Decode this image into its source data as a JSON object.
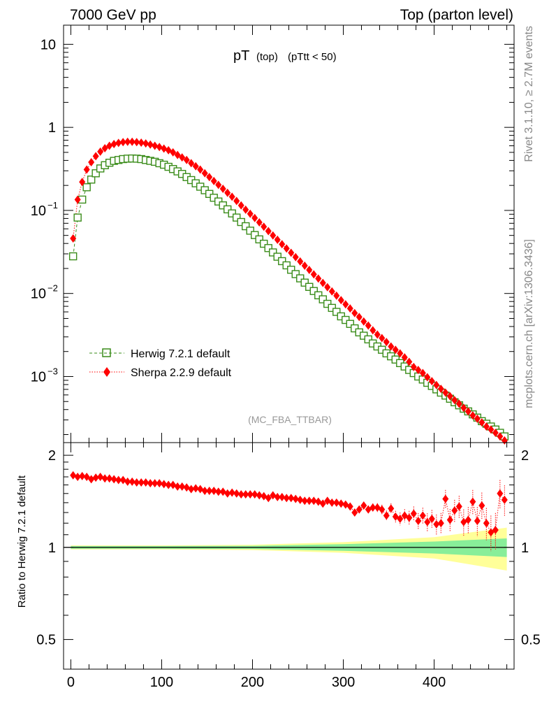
{
  "header": {
    "left": "7000 GeV pp",
    "right": "Top (parton level)"
  },
  "side_text": {
    "rivet": "Rivet 3.1.10, ≥ 2.7M events",
    "url": "mcplots.cern.ch [arXiv:1306.3436]"
  },
  "plot": {
    "title_main": "pT",
    "title_sub": "(top)",
    "title_cut": "(pTtt < 50)",
    "analysis": "(MC_FBA_TTBAR)",
    "ratio_ylabel": "Ratio to Herwig 7.2.1 default"
  },
  "colors": {
    "herwig": "#3a8c1a",
    "sherpa": "#ff0000",
    "band_inner": "#88ee99",
    "band_outer": "#ffff99"
  },
  "chart_data": [
    {
      "type": "scatter",
      "panel": "main",
      "x_scale": "linear",
      "y_scale": "log",
      "xlim": [
        -8,
        488
      ],
      "ylim": [
        0.00016,
        17
      ],
      "y_ticks": [
        {
          "value": 10,
          "label": "10"
        },
        {
          "value": 1,
          "label": "1"
        },
        {
          "value": 0.1,
          "label": "10",
          "exp": "−1"
        },
        {
          "value": 0.01,
          "label": "10",
          "exp": "−2"
        },
        {
          "value": 0.001,
          "label": "10",
          "exp": "−3"
        }
      ],
      "legend": {
        "position": "bottom-left",
        "entries": [
          "Herwig 7.2.1 default",
          "Sherpa 2.2.9 default"
        ]
      },
      "series": [
        {
          "name": "Herwig 7.2.1 default",
          "marker": "open-square",
          "line": "dashed",
          "x": [
            2.5,
            7.5,
            12.5,
            17.5,
            22.5,
            27.5,
            32.5,
            37.5,
            42.5,
            47.5,
            52.5,
            57.5,
            62.5,
            67.5,
            72.5,
            77.5,
            82.5,
            87.5,
            92.5,
            97.5,
            102.5,
            107.5,
            112.5,
            117.5,
            122.5,
            127.5,
            132.5,
            137.5,
            142.5,
            147.5,
            152.5,
            157.5,
            162.5,
            167.5,
            172.5,
            177.5,
            182.5,
            187.5,
            192.5,
            197.5,
            202.5,
            207.5,
            212.5,
            217.5,
            222.5,
            227.5,
            232.5,
            237.5,
            242.5,
            247.5,
            252.5,
            257.5,
            262.5,
            267.5,
            272.5,
            277.5,
            282.5,
            287.5,
            292.5,
            297.5,
            302.5,
            307.5,
            312.5,
            317.5,
            322.5,
            327.5,
            332.5,
            337.5,
            342.5,
            347.5,
            352.5,
            357.5,
            362.5,
            367.5,
            372.5,
            377.5,
            382.5,
            387.5,
            392.5,
            397.5,
            402.5,
            407.5,
            412.5,
            417.5,
            422.5,
            427.5,
            432.5,
            437.5,
            442.5,
            447.5,
            452.5,
            457.5,
            462.5,
            467.5,
            472.5,
            477.5
          ],
          "values": [
            0.028,
            0.082,
            0.135,
            0.19,
            0.235,
            0.28,
            0.32,
            0.35,
            0.375,
            0.395,
            0.405,
            0.415,
            0.42,
            0.422,
            0.42,
            0.415,
            0.405,
            0.395,
            0.385,
            0.37,
            0.355,
            0.335,
            0.315,
            0.295,
            0.275,
            0.252,
            0.232,
            0.212,
            0.193,
            0.175,
            0.158,
            0.142,
            0.128,
            0.115,
            0.103,
            0.092,
            0.082,
            0.0725,
            0.0645,
            0.057,
            0.0505,
            0.0448,
            0.0397,
            0.0352,
            0.0312,
            0.0277,
            0.0245,
            0.0218,
            0.0193,
            0.0171,
            0.0152,
            0.0135,
            0.012,
            0.0107,
            0.0095,
            0.0085,
            0.0075,
            0.0067,
            0.006,
            0.0053,
            0.0048,
            0.0043,
            0.0038,
            0.0034,
            0.0031,
            0.0028,
            0.0025,
            0.0023,
            0.0021,
            0.0019,
            0.00175,
            0.0016,
            0.00145,
            0.00132,
            0.0012,
            0.0011,
            0.001,
            0.00092,
            0.00084,
            0.00077,
            0.0007,
            0.00064,
            0.00059,
            0.00054,
            0.00049,
            0.00045,
            0.00041,
            0.00038,
            0.00035,
            0.00032,
            0.00029,
            0.00027,
            0.00025,
            0.00023,
            0.00021,
            0.00019
          ]
        },
        {
          "name": "Sherpa 2.2.9 default",
          "marker": "filled-diamond",
          "line": "dotted",
          "x": [
            2.5,
            7.5,
            12.5,
            17.5,
            22.5,
            27.5,
            32.5,
            37.5,
            42.5,
            47.5,
            52.5,
            57.5,
            62.5,
            67.5,
            72.5,
            77.5,
            82.5,
            87.5,
            92.5,
            97.5,
            102.5,
            107.5,
            112.5,
            117.5,
            122.5,
            127.5,
            132.5,
            137.5,
            142.5,
            147.5,
            152.5,
            157.5,
            162.5,
            167.5,
            172.5,
            177.5,
            182.5,
            187.5,
            192.5,
            197.5,
            202.5,
            207.5,
            212.5,
            217.5,
            222.5,
            227.5,
            232.5,
            237.5,
            242.5,
            247.5,
            252.5,
            257.5,
            262.5,
            267.5,
            272.5,
            277.5,
            282.5,
            287.5,
            292.5,
            297.5,
            302.5,
            307.5,
            312.5,
            317.5,
            322.5,
            327.5,
            332.5,
            337.5,
            342.5,
            347.5,
            352.5,
            357.5,
            362.5,
            367.5,
            372.5,
            377.5,
            382.5,
            387.5,
            392.5,
            397.5,
            402.5,
            407.5,
            412.5,
            417.5,
            422.5,
            427.5,
            432.5,
            437.5,
            442.5,
            447.5,
            452.5,
            457.5,
            462.5,
            467.5,
            472.5,
            477.5
          ],
          "values": [
            0.046,
            0.135,
            0.22,
            0.31,
            0.38,
            0.45,
            0.51,
            0.56,
            0.6,
            0.63,
            0.65,
            0.665,
            0.67,
            0.67,
            0.665,
            0.655,
            0.64,
            0.62,
            0.6,
            0.58,
            0.555,
            0.53,
            0.5,
            0.465,
            0.435,
            0.405,
            0.37,
            0.34,
            0.31,
            0.28,
            0.252,
            0.226,
            0.203,
            0.182,
            0.163,
            0.146,
            0.13,
            0.115,
            0.102,
            0.091,
            0.081,
            0.0718,
            0.0636,
            0.0563,
            0.0499,
            0.0443,
            0.0392,
            0.0348,
            0.0309,
            0.0274,
            0.0243,
            0.0216,
            0.0192,
            0.017,
            0.0151,
            0.0134,
            0.0119,
            0.0106,
            0.0094,
            0.0083,
            0.0074,
            0.0066,
            0.0058,
            0.0052,
            0.0046,
            0.0041,
            0.0036,
            0.0032,
            0.0029,
            0.0026,
            0.0023,
            0.0021,
            0.0019,
            0.0017,
            0.0015,
            0.0013,
            0.0012,
            0.0011,
            0.00098,
            0.00088,
            0.00079,
            0.00071,
            0.00064,
            0.00058,
            0.00052,
            0.00047,
            0.00042,
            0.00038,
            0.00034,
            0.00031,
            0.00028,
            0.00025,
            0.00023,
            0.00021,
            0.00019,
            0.00017
          ]
        }
      ]
    },
    {
      "type": "scatter",
      "panel": "ratio",
      "ylabel": "Ratio to Herwig 7.2.1 default",
      "xlim": [
        -8,
        488
      ],
      "ylim": [
        0.4,
        2.2
      ],
      "x_ticks": [
        0,
        100,
        200,
        300,
        400
      ],
      "y_ticks": [
        0.5,
        1,
        2
      ],
      "reference": 1,
      "band": {
        "x": [
          0,
          100,
          200,
          300,
          400,
          480
        ],
        "inner_half_width": [
          0.01,
          0.01,
          0.012,
          0.025,
          0.045,
          0.07
        ],
        "outer_half_width": [
          0.015,
          0.015,
          0.02,
          0.04,
          0.08,
          0.16
        ]
      },
      "series": [
        {
          "name": "Sherpa 2.2.9 default",
          "x": [
            2.5,
            7.5,
            12.5,
            17.5,
            22.5,
            27.5,
            32.5,
            37.5,
            42.5,
            47.5,
            52.5,
            57.5,
            62.5,
            67.5,
            72.5,
            77.5,
            82.5,
            87.5,
            92.5,
            97.5,
            102.5,
            107.5,
            112.5,
            117.5,
            122.5,
            127.5,
            132.5,
            137.5,
            142.5,
            147.5,
            152.5,
            157.5,
            162.5,
            167.5,
            172.5,
            177.5,
            182.5,
            187.5,
            192.5,
            197.5,
            202.5,
            207.5,
            212.5,
            217.5,
            222.5,
            227.5,
            232.5,
            237.5,
            242.5,
            247.5,
            252.5,
            257.5,
            262.5,
            267.5,
            272.5,
            277.5,
            282.5,
            287.5,
            292.5,
            297.5,
            302.5,
            307.5,
            312.5,
            317.5,
            322.5,
            327.5,
            332.5,
            337.5,
            342.5,
            347.5,
            352.5,
            357.5,
            362.5,
            367.5,
            372.5,
            377.5,
            382.5,
            387.5,
            392.5,
            397.5,
            402.5,
            407.5,
            412.5,
            417.5,
            422.5,
            427.5,
            432.5,
            437.5,
            442.5,
            447.5,
            452.5,
            457.5,
            462.5,
            467.5,
            472.5,
            477.5
          ],
          "values": [
            1.72,
            1.7,
            1.71,
            1.7,
            1.67,
            1.69,
            1.7,
            1.68,
            1.68,
            1.67,
            1.66,
            1.66,
            1.64,
            1.64,
            1.63,
            1.63,
            1.63,
            1.62,
            1.62,
            1.62,
            1.61,
            1.6,
            1.6,
            1.58,
            1.58,
            1.57,
            1.55,
            1.56,
            1.55,
            1.53,
            1.53,
            1.53,
            1.52,
            1.52,
            1.5,
            1.51,
            1.5,
            1.49,
            1.49,
            1.49,
            1.49,
            1.48,
            1.47,
            1.45,
            1.48,
            1.46,
            1.46,
            1.45,
            1.45,
            1.44,
            1.43,
            1.42,
            1.42,
            1.42,
            1.41,
            1.39,
            1.42,
            1.4,
            1.4,
            1.39,
            1.38,
            1.36,
            1.3,
            1.33,
            1.37,
            1.33,
            1.35,
            1.35,
            1.33,
            1.27,
            1.34,
            1.26,
            1.24,
            1.27,
            1.25,
            1.29,
            1.22,
            1.27,
            1.21,
            1.24,
            1.19,
            1.2,
            1.44,
            1.23,
            1.32,
            1.36,
            1.21,
            1.23,
            1.41,
            1.22,
            1.37,
            1.2,
            1.12,
            1.14,
            1.5,
            1.43
          ],
          "err": [
            0.01,
            0.01,
            0.01,
            0.01,
            0.01,
            0.01,
            0.01,
            0.01,
            0.01,
            0.01,
            0.01,
            0.01,
            0.01,
            0.01,
            0.01,
            0.01,
            0.01,
            0.01,
            0.01,
            0.01,
            0.01,
            0.01,
            0.01,
            0.01,
            0.01,
            0.01,
            0.01,
            0.01,
            0.01,
            0.01,
            0.01,
            0.01,
            0.01,
            0.012,
            0.012,
            0.012,
            0.012,
            0.013,
            0.013,
            0.013,
            0.014,
            0.014,
            0.015,
            0.015,
            0.016,
            0.016,
            0.017,
            0.018,
            0.019,
            0.02,
            0.02,
            0.021,
            0.022,
            0.023,
            0.024,
            0.025,
            0.026,
            0.027,
            0.028,
            0.029,
            0.03,
            0.032,
            0.034,
            0.036,
            0.038,
            0.04,
            0.042,
            0.045,
            0.048,
            0.05,
            0.053,
            0.056,
            0.06,
            0.063,
            0.066,
            0.07,
            0.074,
            0.078,
            0.082,
            0.086,
            0.09,
            0.095,
            0.1,
            0.105,
            0.11,
            0.115,
            0.12,
            0.125,
            0.13,
            0.135,
            0.14,
            0.145,
            0.15,
            0.155,
            0.16,
            0.165
          ]
        }
      ]
    }
  ],
  "x_ticks_labels": [
    "0",
    "100",
    "200",
    "300",
    "400"
  ],
  "ratio_ticks_labels": [
    "0.5",
    "1",
    "2"
  ]
}
